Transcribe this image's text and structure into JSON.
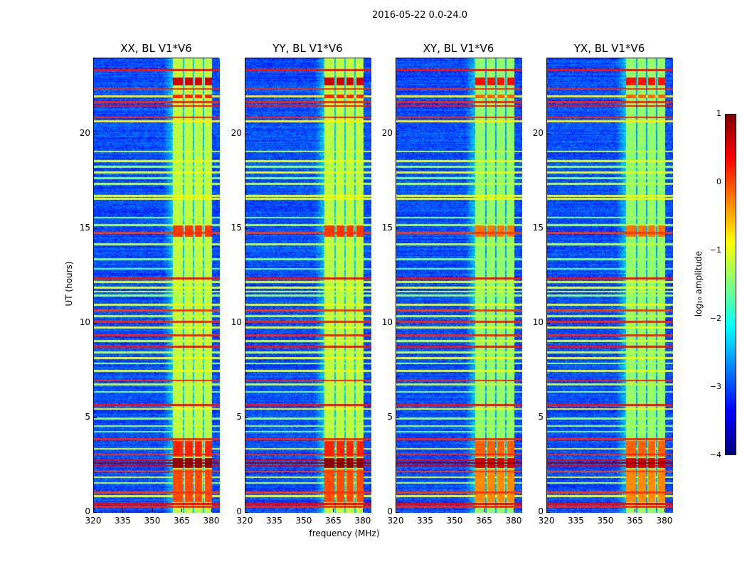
{
  "chart_data": {
    "type": "heatmap",
    "title": "2016-05-22 0.0-24.0",
    "xlabel": "frequency (MHz)",
    "ylabel": "UT (hours)",
    "xlim": [
      320,
      384
    ],
    "ylim": [
      0,
      24
    ],
    "xticks": [
      "320",
      "335",
      "350",
      "365",
      "380"
    ],
    "xtick_values": [
      320,
      335,
      350,
      365,
      380
    ],
    "yticks": [
      "0",
      "5",
      "10",
      "15",
      "20"
    ],
    "ytick_values": [
      0,
      5,
      10,
      15,
      20
    ],
    "panels": [
      {
        "title": "XX, BL V1*V6",
        "seed": 11
      },
      {
        "title": "YY, BL V1*V6",
        "seed": 23
      },
      {
        "title": "XY, BL V1*V6",
        "seed": 37
      },
      {
        "title": "YX, BL V1*V6",
        "seed": 51
      }
    ],
    "colorbar": {
      "label": "log₁₀ amplitude",
      "colormap": "jet",
      "clim": [
        -4,
        1
      ],
      "ticks": [
        "1",
        "0",
        "−1",
        "−2",
        "−3",
        "−4"
      ],
      "tick_values": [
        1,
        0,
        -1,
        -2,
        -3,
        -4
      ]
    },
    "background_level": -3.0,
    "bright_band_mhz": [
      360,
      380
    ],
    "bright_band_level": -1.2,
    "band_gaps_mhz": [
      365.5,
      370.5,
      375.5
    ],
    "hot_rows_ut": [
      [
        22.6,
        23.0,
        0.6
      ],
      [
        21.9,
        22.1,
        0.2
      ],
      [
        14.6,
        15.2,
        0.1
      ],
      [
        3.0,
        3.8,
        0.2
      ],
      [
        2.4,
        2.9,
        0.9
      ],
      [
        0.6,
        2.3,
        0.0
      ]
    ],
    "rfi_lines_ut": [
      [
        23.4,
        0.3
      ],
      [
        22.4,
        0.2
      ],
      [
        22.0,
        -0.8
      ],
      [
        21.7,
        0.2
      ],
      [
        21.5,
        0.3
      ],
      [
        20.9,
        0.2
      ],
      [
        20.7,
        -0.8
      ],
      [
        19.1,
        -1.2
      ],
      [
        18.6,
        -1.0
      ],
      [
        18.3,
        -1.4
      ],
      [
        18.0,
        -1.0
      ],
      [
        17.7,
        -1.5
      ],
      [
        17.4,
        -1.2
      ],
      [
        16.75,
        -0.9
      ],
      [
        16.6,
        -1.0
      ],
      [
        15.6,
        -1.5
      ],
      [
        15.2,
        -1.3
      ],
      [
        14.8,
        0.1
      ],
      [
        14.2,
        -1.2
      ],
      [
        13.4,
        -1.5
      ],
      [
        12.9,
        -1.6
      ],
      [
        12.4,
        0.3
      ],
      [
        12.2,
        -1.1
      ],
      [
        11.9,
        -1.0
      ],
      [
        11.7,
        -1.1
      ],
      [
        11.5,
        -1.4
      ],
      [
        11.0,
        -1.0
      ],
      [
        10.7,
        0.1
      ],
      [
        10.4,
        -1.2
      ],
      [
        10.1,
        0.2
      ],
      [
        9.8,
        -1.0
      ],
      [
        9.4,
        0.2
      ],
      [
        9.1,
        -1.1
      ],
      [
        8.8,
        0.3
      ],
      [
        8.5,
        -1.2
      ],
      [
        8.2,
        -0.9
      ],
      [
        7.9,
        -1.4
      ],
      [
        7.5,
        -1.0
      ],
      [
        7.0,
        0.2
      ],
      [
        6.8,
        -1.2
      ],
      [
        6.4,
        -1.5
      ],
      [
        5.7,
        0.3
      ],
      [
        5.5,
        -0.9
      ],
      [
        5.0,
        -1.4
      ],
      [
        4.6,
        -1.3
      ],
      [
        4.3,
        -1.6
      ],
      [
        3.9,
        0.2
      ],
      [
        3.4,
        -1.0
      ],
      [
        3.1,
        0.2
      ],
      [
        2.8,
        0.4
      ],
      [
        2.65,
        0.9
      ],
      [
        2.5,
        0.5
      ],
      [
        2.2,
        0.1
      ],
      [
        1.9,
        -1.0
      ],
      [
        1.6,
        -1.2
      ],
      [
        1.1,
        0.1
      ],
      [
        0.9,
        -0.9
      ],
      [
        0.5,
        0.4
      ],
      [
        0.35,
        0.2
      ]
    ]
  }
}
